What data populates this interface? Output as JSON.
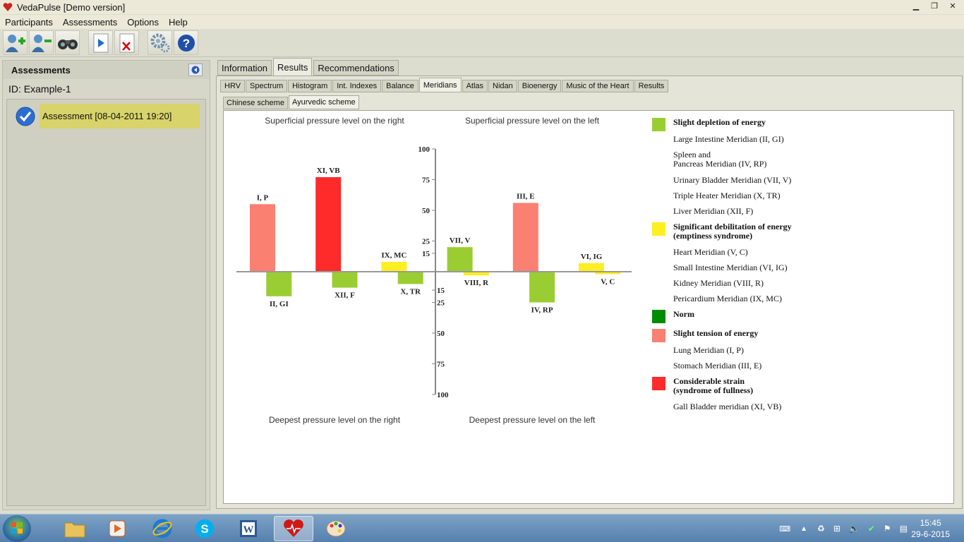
{
  "window": {
    "title": "VedaPulse [Demo version]"
  },
  "menu": [
    "Participants",
    "Assessments",
    "Options",
    "Help"
  ],
  "toolbar": {
    "buttons": [
      "add-participant-icon",
      "remove-participant-icon",
      "binoculars-icon",
      "play-icon",
      "delete-document-icon",
      "settings-gears-icon",
      "help-icon"
    ]
  },
  "left_panel": {
    "title": "Assessments",
    "id_label": "ID:",
    "id_value": "Example-1",
    "assessment": "Assessment [08-04-2011 19:20]"
  },
  "tabs_main": [
    "Information",
    "Results",
    "Recommendations"
  ],
  "tabs_main_active": "Results",
  "tabs_sub": [
    "HRV",
    "Spectrum",
    "Histogram",
    "Int. Indexes",
    "Balance",
    "Meridians",
    "Atlas",
    "Nidan",
    "Bioenergy",
    "Music of the Heart",
    "Results"
  ],
  "tabs_sub_active": "Meridians",
  "tabs_scheme": [
    "Chinese scheme",
    "Ayurvedic scheme"
  ],
  "tabs_scheme_active": "Ayurvedic scheme",
  "chart_data": {
    "type": "bar",
    "captions": {
      "top_right": "Superficial pressure level on the right",
      "top_left": "Superficial pressure level on the left",
      "bottom_right": "Deepest pressure level on the right",
      "bottom_left": "Deepest pressure level on the left"
    },
    "y_ticks_up": [
      "100",
      "75",
      "50",
      "25",
      "15"
    ],
    "y_ticks_down": [
      "15",
      "25",
      "50",
      "75",
      "100"
    ],
    "ylim": [
      -100,
      100
    ],
    "bars": [
      {
        "label": "I, P",
        "value": 55,
        "color": "#fa8072",
        "slot": 0
      },
      {
        "label": "II, GI",
        "value": -20,
        "color": "#9acd32",
        "slot": 0.5
      },
      {
        "label": "XI, VB",
        "value": 77,
        "color": "#ff2a2a",
        "slot": 2
      },
      {
        "label": "XII, F",
        "value": -13,
        "color": "#9acd32",
        "slot": 2.5
      },
      {
        "label": "IX, MC",
        "value": 8,
        "color": "#ffee22",
        "slot": 4
      },
      {
        "label": "X, TR",
        "value": -10,
        "color": "#9acd32",
        "slot": 4.5
      },
      {
        "label": "VII, V",
        "value": 20,
        "color": "#9acd32",
        "slot": 6
      },
      {
        "label": "VIII, R",
        "value": -3,
        "color": "#ffee22",
        "slot": 6.5
      },
      {
        "label": "III, E",
        "value": 56,
        "color": "#fa8072",
        "slot": 8
      },
      {
        "label": "IV, RP",
        "value": -25,
        "color": "#9acd32",
        "slot": 8.5
      },
      {
        "label": "VI, IG",
        "value": 7,
        "color": "#ffee22",
        "slot": 10
      },
      {
        "label": "V, C",
        "value": -2,
        "color": "#ffee22",
        "slot": 10.5
      }
    ]
  },
  "legend": [
    {
      "color": "#9acd32",
      "title": [
        "Slight depletion of energy"
      ],
      "items": [
        [
          "Large Intestine Meridian (II, GI)"
        ],
        [
          "Spleen and",
          "Pancreas Meridian  (IV, RP)"
        ],
        [
          "Urinary Bladder Meridian (VII, V)"
        ],
        [
          "Triple Heater Meridian (X, TR)"
        ],
        [
          "Liver Meridian (XII, F)"
        ]
      ]
    },
    {
      "color": "#ffee22",
      "title": [
        "Significant debilitation of energy",
        "(emptiness syndrome)"
      ],
      "items": [
        [
          "Heart Meridian (V, C)"
        ],
        [
          "Small Intestine Meridian (VI, IG)"
        ],
        [
          "Kidney Meridian (VIII, R)"
        ],
        [
          "Pericardium Meridian (IX, MC)"
        ]
      ]
    },
    {
      "color": "#008c00",
      "title": [
        "Norm"
      ],
      "items": []
    },
    {
      "color": "#fa8072",
      "title": [
        "Slight tension of energy"
      ],
      "items": [
        [
          "Lung Meridian (I, P)"
        ],
        [
          "Stomach Meridian (III, E)"
        ]
      ]
    },
    {
      "color": "#ff2a2a",
      "title": [
        "Considerable strain",
        "(syndrome of fullness)"
      ],
      "items": [
        [
          "Gall Bladder meridian (XI, VB)"
        ]
      ]
    }
  ],
  "taskbar": {
    "apps": [
      "folder-icon",
      "media-player-icon",
      "ie-icon",
      "skype-icon",
      "word-icon",
      "vedapulse-icon",
      "paint-icon"
    ],
    "active_app": "vedapulse-icon",
    "time": "15:45",
    "date": "29-6-2015"
  }
}
